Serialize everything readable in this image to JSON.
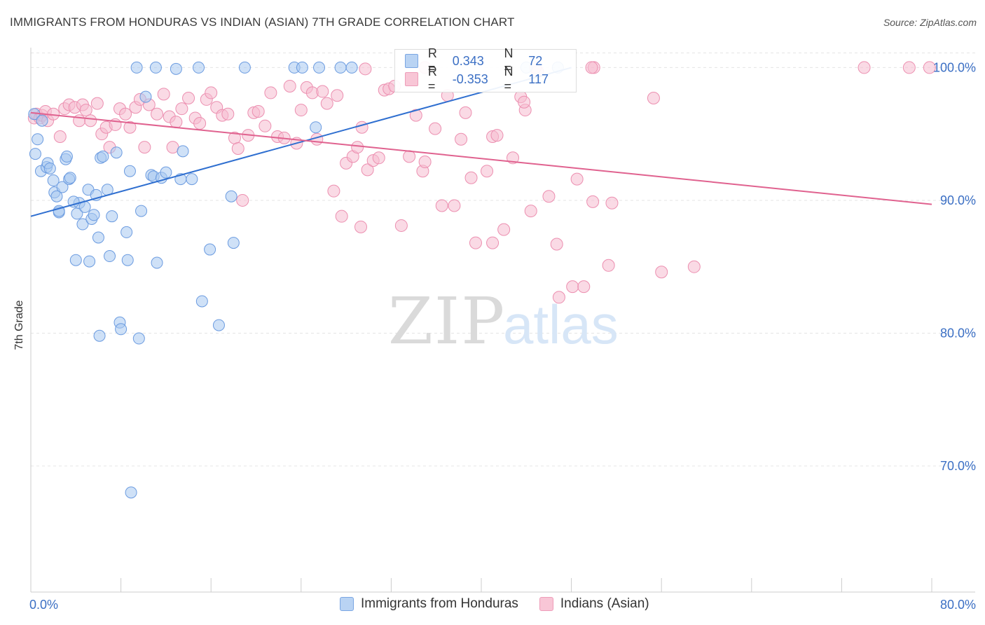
{
  "header": {
    "title": "IMMIGRANTS FROM HONDURAS VS INDIAN (ASIAN) 7TH GRADE CORRELATION CHART",
    "source": "Source: ZipAtlas.com"
  },
  "watermark": {
    "zip": "ZIP",
    "atlas": "atlas"
  },
  "legend_box": {
    "rows": [
      {
        "r_label": "R =",
        "r_value": "0.343",
        "n_label": "N =",
        "n_value": "72"
      },
      {
        "r_label": "R =",
        "r_value": "-0.353",
        "n_label": "N =",
        "n_value": "117"
      }
    ]
  },
  "bottom_legend": {
    "items": [
      {
        "label": "Immigrants from Honduras"
      },
      {
        "label": "Indians (Asian)"
      }
    ]
  },
  "colors": {
    "blue_fill": "#a8c8f0",
    "blue_stroke": "#6b9be0",
    "blue_line": "#2f6fd0",
    "pink_fill": "#f5bcd0",
    "pink_stroke": "#ec8fb0",
    "pink_line": "#e0628f",
    "axis_text": "#3b6fc4",
    "grid": "#e4e4e4"
  },
  "chart_data": {
    "type": "scatter",
    "title": "IMMIGRANTS FROM HONDURAS VS INDIAN (ASIAN) 7TH GRADE CORRELATION CHART",
    "xlabel": "",
    "ylabel": "7th Grade",
    "xlim": [
      0,
      80
    ],
    "ylim": [
      60.5,
      101.5
    ],
    "x_tick_labels": [
      "0.0%",
      "80.0%"
    ],
    "y_ticks": [
      {
        "value": 100,
        "label": "100.0%"
      },
      {
        "value": 90,
        "label": "90.0%"
      },
      {
        "value": 80,
        "label": "80.0%"
      },
      {
        "value": 70,
        "label": "70.0%"
      }
    ],
    "grid": true,
    "legend_position": "top-center",
    "series": [
      {
        "name": "Immigrants from Honduras",
        "r": 0.343,
        "n": 72,
        "trend": {
          "x0": 0,
          "y0": 88.8,
          "x1": 48,
          "y1": 100.0
        },
        "points": [
          [
            0.3,
            96.5
          ],
          [
            0.4,
            93.5
          ],
          [
            0.6,
            94.6
          ],
          [
            0.9,
            92.2
          ],
          [
            1.0,
            96.0
          ],
          [
            1.4,
            92.5
          ],
          [
            1.5,
            92.8
          ],
          [
            1.7,
            92.4
          ],
          [
            2.0,
            91.5
          ],
          [
            2.1,
            90.6
          ],
          [
            2.3,
            90.3
          ],
          [
            2.5,
            89.1
          ],
          [
            2.8,
            91.0
          ],
          [
            3.1,
            93.1
          ],
          [
            3.2,
            93.3
          ],
          [
            3.4,
            91.6
          ],
          [
            3.5,
            91.7
          ],
          [
            4.1,
            89.0
          ],
          [
            4.3,
            89.8
          ],
          [
            4.6,
            88.2
          ],
          [
            4.8,
            89.5
          ],
          [
            5.1,
            90.8
          ],
          [
            5.4,
            88.6
          ],
          [
            5.6,
            88.9
          ],
          [
            5.8,
            90.4
          ],
          [
            6.0,
            87.2
          ],
          [
            6.2,
            93.2
          ],
          [
            6.4,
            93.3
          ],
          [
            6.8,
            90.8
          ],
          [
            7.0,
            85.8
          ],
          [
            7.2,
            88.8
          ],
          [
            7.6,
            93.6
          ],
          [
            7.9,
            80.8
          ],
          [
            8.5,
            87.6
          ],
          [
            8.6,
            85.5
          ],
          [
            8.8,
            92.2
          ],
          [
            8.9,
            68.0
          ],
          [
            9.6,
            79.6
          ],
          [
            9.8,
            89.2
          ],
          [
            10.2,
            97.8
          ],
          [
            10.7,
            91.9
          ],
          [
            10.9,
            91.8
          ],
          [
            11.2,
            85.3
          ],
          [
            11.6,
            91.7
          ],
          [
            12.0,
            92.1
          ],
          [
            13.3,
            91.6
          ],
          [
            13.5,
            93.7
          ],
          [
            14.3,
            91.6
          ],
          [
            15.2,
            82.4
          ],
          [
            15.9,
            86.3
          ],
          [
            16.7,
            80.6
          ],
          [
            17.8,
            90.3
          ],
          [
            18.0,
            86.8
          ],
          [
            9.4,
            100.0
          ],
          [
            11.1,
            100.0
          ],
          [
            12.9,
            99.9
          ],
          [
            14.9,
            100.0
          ],
          [
            19.0,
            100.0
          ],
          [
            23.4,
            100.0
          ],
          [
            24.1,
            100.0
          ],
          [
            25.6,
            100.0
          ],
          [
            27.5,
            100.0
          ],
          [
            28.5,
            100.0
          ],
          [
            25.3,
            95.5
          ],
          [
            4.0,
            85.5
          ],
          [
            5.2,
            85.4
          ],
          [
            6.1,
            79.8
          ],
          [
            8.0,
            80.3
          ],
          [
            2.5,
            89.2
          ],
          [
            3.8,
            89.9
          ],
          [
            44.0,
            100.0
          ],
          [
            46.8,
            100.0
          ]
        ]
      },
      {
        "name": "Indians (Asian)",
        "r": -0.353,
        "n": 117,
        "trend": {
          "x0": 0,
          "y0": 96.6,
          "x1": 80,
          "y1": 89.7
        },
        "points": [
          [
            0.3,
            96.2
          ],
          [
            0.5,
            96.5
          ],
          [
            0.8,
            96.2
          ],
          [
            1.0,
            96.4
          ],
          [
            1.3,
            96.7
          ],
          [
            1.5,
            96.0
          ],
          [
            2.0,
            96.5
          ],
          [
            2.6,
            94.8
          ],
          [
            3.0,
            96.9
          ],
          [
            3.4,
            97.2
          ],
          [
            3.9,
            97.0
          ],
          [
            4.3,
            96.0
          ],
          [
            4.6,
            97.2
          ],
          [
            4.9,
            96.8
          ],
          [
            5.3,
            96.0
          ],
          [
            5.9,
            97.3
          ],
          [
            6.3,
            95.0
          ],
          [
            6.7,
            95.5
          ],
          [
            7.0,
            94.0
          ],
          [
            7.5,
            95.7
          ],
          [
            7.9,
            96.9
          ],
          [
            8.4,
            96.5
          ],
          [
            8.8,
            95.5
          ],
          [
            9.3,
            97.0
          ],
          [
            9.7,
            97.6
          ],
          [
            10.1,
            94.0
          ],
          [
            10.5,
            97.2
          ],
          [
            11.2,
            96.5
          ],
          [
            11.8,
            98.0
          ],
          [
            12.3,
            96.3
          ],
          [
            12.6,
            94.0
          ],
          [
            12.9,
            95.9
          ],
          [
            13.4,
            96.9
          ],
          [
            14.0,
            97.7
          ],
          [
            14.6,
            96.2
          ],
          [
            15.0,
            95.8
          ],
          [
            15.6,
            97.6
          ],
          [
            16.0,
            98.1
          ],
          [
            16.5,
            97.0
          ],
          [
            17.0,
            96.4
          ],
          [
            17.5,
            96.5
          ],
          [
            18.1,
            94.7
          ],
          [
            18.4,
            93.9
          ],
          [
            18.8,
            90.0
          ],
          [
            19.3,
            94.9
          ],
          [
            19.8,
            96.6
          ],
          [
            20.2,
            96.7
          ],
          [
            20.8,
            95.6
          ],
          [
            21.3,
            98.1
          ],
          [
            21.9,
            94.8
          ],
          [
            22.5,
            94.7
          ],
          [
            23.0,
            98.6
          ],
          [
            23.6,
            94.3
          ],
          [
            24.0,
            96.8
          ],
          [
            24.5,
            98.5
          ],
          [
            25.0,
            98.1
          ],
          [
            25.4,
            94.6
          ],
          [
            25.9,
            98.2
          ],
          [
            26.3,
            97.3
          ],
          [
            26.9,
            90.7
          ],
          [
            27.2,
            97.9
          ],
          [
            27.6,
            88.8
          ],
          [
            28.0,
            92.8
          ],
          [
            28.6,
            93.3
          ],
          [
            29.0,
            94.0
          ],
          [
            29.4,
            95.5
          ],
          [
            29.9,
            92.3
          ],
          [
            30.4,
            93.0
          ],
          [
            30.9,
            93.2
          ],
          [
            31.4,
            98.3
          ],
          [
            31.8,
            98.4
          ],
          [
            32.3,
            98.6
          ],
          [
            32.9,
            88.1
          ],
          [
            33.6,
            93.3
          ],
          [
            34.2,
            96.4
          ],
          [
            34.8,
            92.2
          ],
          [
            35.0,
            92.9
          ],
          [
            35.9,
            95.4
          ],
          [
            36.5,
            89.6
          ],
          [
            37.0,
            97.9
          ],
          [
            37.6,
            89.6
          ],
          [
            38.2,
            94.6
          ],
          [
            38.6,
            96.6
          ],
          [
            39.1,
            91.7
          ],
          [
            39.5,
            86.8
          ],
          [
            40.5,
            92.2
          ],
          [
            41.0,
            94.8
          ],
          [
            41.4,
            94.9
          ],
          [
            42.0,
            87.8
          ],
          [
            42.8,
            93.2
          ],
          [
            43.5,
            97.8
          ],
          [
            43.9,
            96.8
          ],
          [
            44.4,
            89.2
          ],
          [
            45.0,
            99.7
          ],
          [
            46.0,
            90.3
          ],
          [
            46.7,
            86.7
          ],
          [
            46.9,
            82.7
          ],
          [
            48.1,
            83.5
          ],
          [
            49.1,
            83.5
          ],
          [
            50.0,
            100.0
          ],
          [
            48.5,
            91.6
          ],
          [
            49.9,
            89.9
          ],
          [
            51.6,
            89.8
          ],
          [
            51.3,
            85.1
          ],
          [
            55.3,
            97.7
          ],
          [
            56.0,
            84.6
          ],
          [
            58.9,
            85.0
          ],
          [
            43.8,
            97.4
          ],
          [
            29.7,
            99.9
          ],
          [
            35.0,
            100.0
          ],
          [
            44.8,
            100.0
          ],
          [
            49.8,
            100.0
          ],
          [
            74.0,
            100.0
          ],
          [
            78.0,
            100.0
          ],
          [
            79.8,
            100.0
          ],
          [
            29.3,
            88.0
          ],
          [
            41.0,
            86.8
          ]
        ]
      }
    ]
  }
}
